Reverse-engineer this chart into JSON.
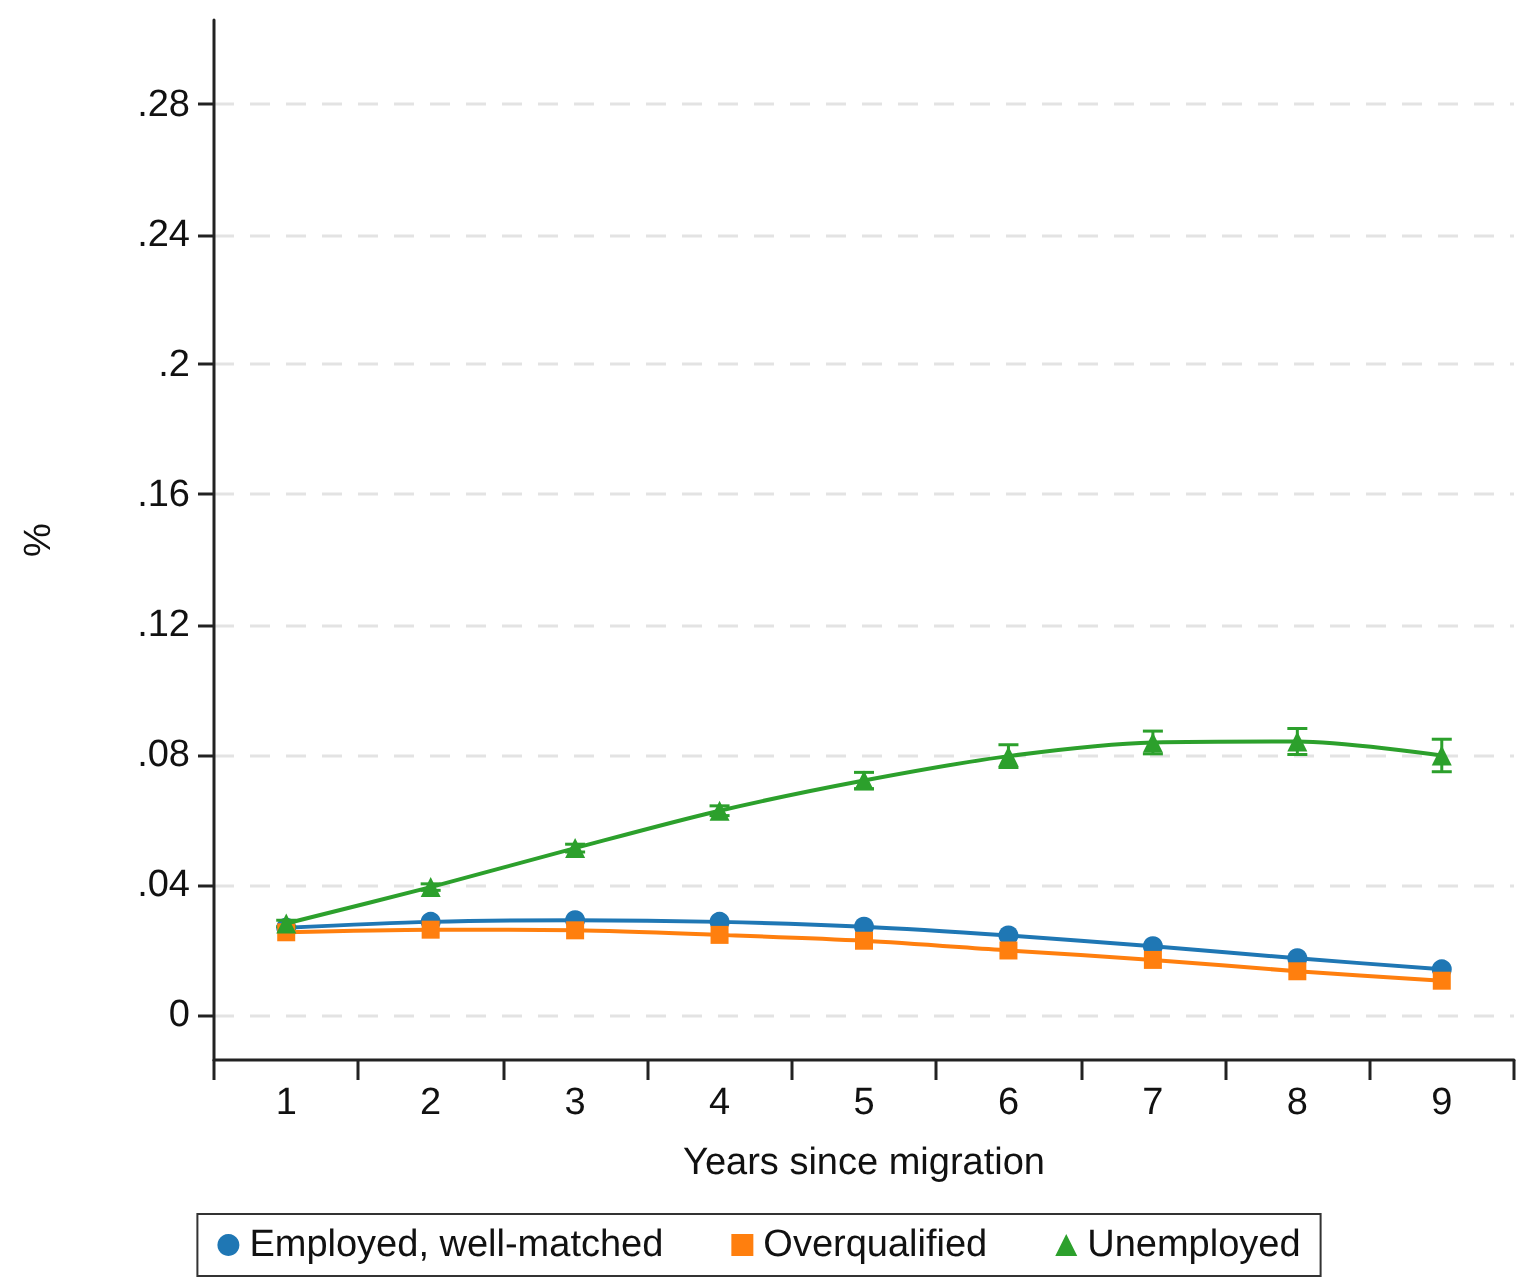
{
  "chart_data": {
    "type": "line",
    "xlabel": "Years since migration",
    "ylabel": "%",
    "x": [
      1,
      2,
      3,
      4,
      5,
      6,
      7,
      8,
      9
    ],
    "series": [
      {
        "name": "Employed, well-matched",
        "color": "#1f77b4",
        "marker": "circle",
        "values": [
          0.0267,
          0.0285,
          0.029,
          0.0285,
          0.027,
          0.0243,
          0.021,
          0.0173,
          0.0139
        ]
      },
      {
        "name": "Overqualified",
        "color": "#ff7f0e",
        "marker": "square",
        "values": [
          0.0253,
          0.0261,
          0.0259,
          0.0245,
          0.0227,
          0.0197,
          0.0168,
          0.0133,
          0.0104
        ]
      },
      {
        "name": "Unemployed",
        "color": "#2ca02c",
        "marker": "triangle",
        "values": [
          0.028,
          0.0392,
          0.0512,
          0.0627,
          0.072,
          0.0795,
          0.0837,
          0.084,
          0.0797
        ],
        "errors": [
          0.001,
          0.001,
          0.0012,
          0.0015,
          0.0025,
          0.0035,
          0.0035,
          0.004,
          0.005
        ]
      }
    ],
    "xlim": [
      0.5,
      9.5
    ],
    "xticks": [
      {
        "value": 0.5,
        "label": null
      },
      1,
      {
        "value": 1.5,
        "label": null
      },
      2,
      {
        "value": 2.5,
        "label": null
      },
      3,
      {
        "value": 3.5,
        "label": null
      },
      4,
      {
        "value": 4.5,
        "label": null
      },
      5,
      {
        "value": 5.5,
        "label": null
      },
      6,
      {
        "value": 6.5,
        "label": null
      },
      7,
      {
        "value": 7.5,
        "label": null
      },
      8,
      {
        "value": 8.5,
        "label": null
      },
      9,
      {
        "value": 9.5,
        "label": null
      }
    ],
    "ylim": [
      -0.014,
      0.306
    ],
    "yticks": [
      0,
      {
        "value": 0.04,
        "label": ".04"
      },
      {
        "value": 0.08,
        "label": ".08"
      },
      {
        "value": 0.12,
        "label": ".12"
      },
      {
        "value": 0.16,
        "label": ".16"
      },
      {
        "value": 0.2,
        "label": ".2"
      },
      {
        "value": 0.24,
        "label": ".24"
      },
      {
        "value": 0.28,
        "label": ".28"
      }
    ],
    "grid": "y",
    "legend": "bottom",
    "line_style": "solid"
  }
}
